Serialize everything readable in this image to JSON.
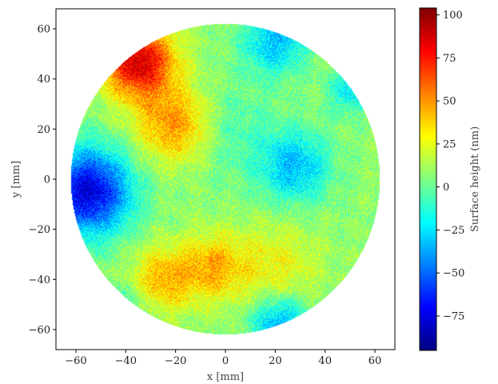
{
  "chart_data": {
    "type": "heatmap",
    "title": "",
    "xlabel": "x [mm]",
    "ylabel": "y [mm]",
    "colorbar_label": "Surface height (nm)",
    "colormap": "jet",
    "xlim": [
      -68,
      68
    ],
    "ylim": [
      -68,
      68
    ],
    "aperture_radius_mm": 62,
    "x_ticks": [
      -60,
      -40,
      -20,
      0,
      20,
      40,
      60
    ],
    "y_ticks": [
      -60,
      -40,
      -20,
      0,
      20,
      40,
      60
    ],
    "x_tick_labels": [
      "−60",
      "−40",
      "−20",
      "0",
      "20",
      "40",
      "60"
    ],
    "y_tick_labels": [
      "−60",
      "−40",
      "−20",
      "0",
      "20",
      "40",
      "60"
    ],
    "clim": [
      -95,
      104
    ],
    "colorbar_ticks": [
      100,
      75,
      50,
      25,
      0,
      -25,
      -50,
      -75
    ],
    "colorbar_tick_labels": [
      "100",
      "75",
      "50",
      "25",
      "0",
      "−25",
      "−50",
      "−75"
    ],
    "base_level_nm": 8,
    "features": [
      {
        "name": "high-region-top-left",
        "x": -35,
        "y": 47,
        "sigma": 10,
        "amplitude": 80
      },
      {
        "name": "high-region-upper-left-center",
        "x": -20,
        "y": 22,
        "sigma": 11,
        "amplitude": 45
      },
      {
        "name": "high-ridge-lower-left-a",
        "x": -25,
        "y": -40,
        "sigma": 9,
        "amplitude": 35
      },
      {
        "name": "high-ridge-lower-left-b",
        "x": -5,
        "y": -35,
        "sigma": 9,
        "amplitude": 35
      },
      {
        "name": "high-region-lower-right",
        "x": 20,
        "y": -35,
        "sigma": 12,
        "amplitude": 20
      },
      {
        "name": "low-region-left-edge",
        "x": -55,
        "y": -5,
        "sigma": 12,
        "amplitude": -85
      },
      {
        "name": "low-region-center-right",
        "x": 28,
        "y": 5,
        "sigma": 10,
        "amplitude": -40
      },
      {
        "name": "low-region-top-right",
        "x": 20,
        "y": 55,
        "sigma": 9,
        "amplitude": -40
      },
      {
        "name": "low-region-right-edge",
        "x": 50,
        "y": 35,
        "sigma": 6,
        "amplitude": -30
      },
      {
        "name": "low-region-bottom-center-right",
        "x": 22,
        "y": -58,
        "sigma": 8,
        "amplitude": -45
      },
      {
        "name": "low-region-lower-left-rim",
        "x": -40,
        "y": -50,
        "sigma": 7,
        "amplitude": -15
      },
      {
        "name": "neutral-region-center",
        "x": 0,
        "y": 20,
        "sigma": 14,
        "amplitude": -15
      }
    ],
    "noise_amplitude_nm": 16
  }
}
